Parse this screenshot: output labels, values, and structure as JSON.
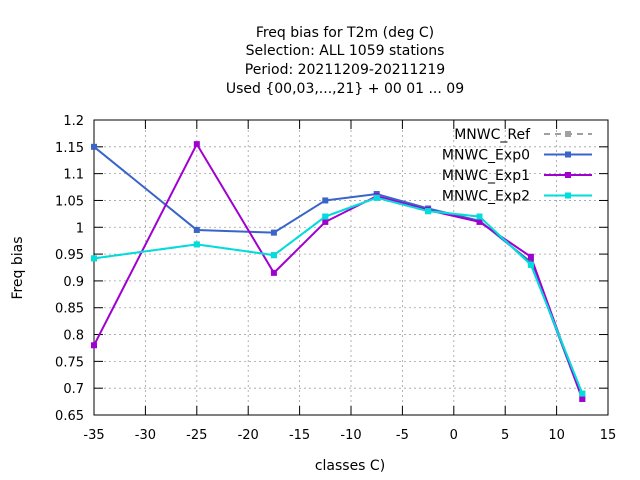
{
  "chart_data": {
    "type": "line",
    "title_lines": [
      "Freq bias  for T2m (deg C)",
      "Selection: ALL    1059 stations",
      "Period: 20211209-20211219",
      "Used {00,03,...,21} + 00 01 ... 09"
    ],
    "xlabel": "classes C)",
    "ylabel": "Freq bias",
    "xlim": [
      -35,
      15
    ],
    "ylim": [
      0.65,
      1.2
    ],
    "xticks": [
      -35,
      -30,
      -25,
      -20,
      -15,
      -10,
      -5,
      0,
      5,
      10,
      15
    ],
    "yticks": [
      0.65,
      0.7,
      0.75,
      0.8,
      0.85,
      0.9,
      0.95,
      1.0,
      1.05,
      1.1,
      1.15,
      1.2
    ],
    "xtick_labels": [
      "-35",
      "-30",
      "-25",
      "-20",
      "-15",
      "-10",
      "-5",
      "0",
      "5",
      "10",
      "15"
    ],
    "ytick_labels": [
      "0.65",
      "0.7",
      "0.75",
      "0.8",
      "0.85",
      "0.9",
      "0.95",
      "1",
      "1.05",
      "1.1",
      "1.15",
      "1.2"
    ],
    "grid": true,
    "legend_position": "top-right",
    "x": [
      -35,
      -25,
      -17.5,
      -12.5,
      -7.5,
      -2.5,
      2.5,
      7.5,
      12.5
    ],
    "series": [
      {
        "name": "MNWC_Ref",
        "color": "#a0a0a0",
        "dashed": true,
        "values": [
          0.942,
          0.968,
          0.948,
          1.02,
          1.055,
          1.03,
          1.02,
          0.93,
          0.69
        ]
      },
      {
        "name": "MNWC_Exp0",
        "color": "#3a65c8",
        "dashed": false,
        "values": [
          1.15,
          0.995,
          0.99,
          1.05,
          1.062,
          1.035,
          1.012,
          0.935,
          0.68
        ]
      },
      {
        "name": "MNWC_Exp1",
        "color": "#a000d0",
        "dashed": false,
        "values": [
          0.78,
          1.155,
          0.915,
          1.01,
          1.058,
          1.032,
          1.01,
          0.945,
          0.68
        ]
      },
      {
        "name": "MNWC_Exp2",
        "color": "#00dddd",
        "dashed": false,
        "values": [
          0.942,
          0.968,
          0.948,
          1.02,
          1.055,
          1.03,
          1.02,
          0.93,
          0.69
        ]
      }
    ]
  }
}
